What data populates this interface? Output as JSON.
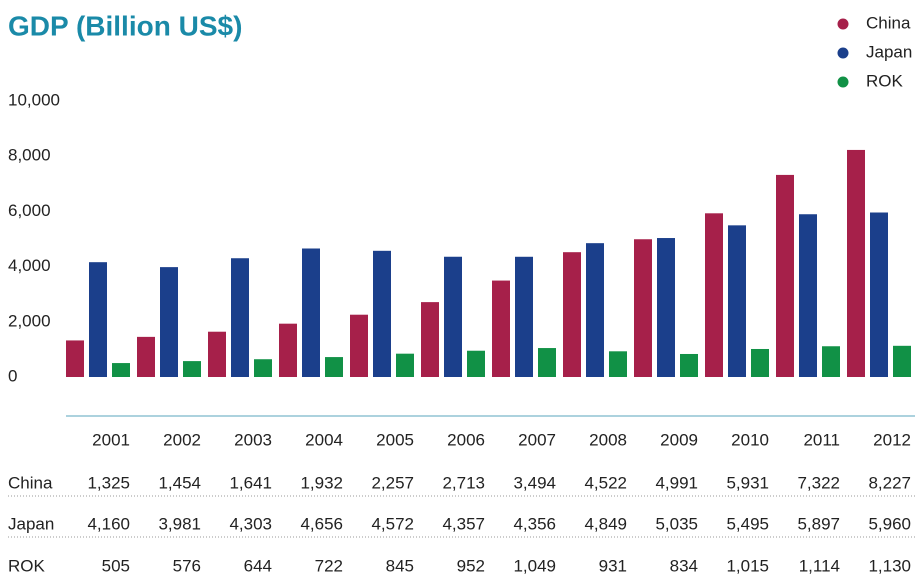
{
  "chart_data": {
    "type": "bar",
    "title": "GDP (Billion US$)",
    "categories": [
      "2001",
      "2002",
      "2003",
      "2004",
      "2005",
      "2006",
      "2007",
      "2008",
      "2009",
      "2010",
      "2011",
      "2012"
    ],
    "series": [
      {
        "name": "China",
        "color": "#a6204a",
        "values": [
          1325,
          1454,
          1641,
          1932,
          2257,
          2713,
          3494,
          4522,
          4991,
          5931,
          7322,
          8227
        ],
        "value_labels": [
          "1,325",
          "1,454",
          "1,641",
          "1,932",
          "2,257",
          "2,713",
          "3,494",
          "4,522",
          "4,991",
          "5,931",
          "7,322",
          "8,227"
        ]
      },
      {
        "name": "Japan",
        "color": "#1b3f8b",
        "values": [
          4160,
          3981,
          4303,
          4656,
          4572,
          4357,
          4356,
          4849,
          5035,
          5495,
          5897,
          5960
        ],
        "value_labels": [
          "4,160",
          "3,981",
          "4,303",
          "4,656",
          "4,572",
          "4,357",
          "4,356",
          "4,849",
          "5,035",
          "5,495",
          "5,897",
          "5,960"
        ]
      },
      {
        "name": "ROK",
        "color": "#119146",
        "values": [
          505,
          576,
          644,
          722,
          845,
          952,
          1049,
          931,
          834,
          1015,
          1114,
          1130
        ],
        "value_labels": [
          "505",
          "576",
          "644",
          "722",
          "845",
          "952",
          "1,049",
          "931",
          "834",
          "1,015",
          "1,114",
          "1,130"
        ]
      }
    ],
    "ylim": [
      0,
      10000
    ],
    "yticks": [
      0,
      {
        "value": 2000,
        "label": "2,000"
      },
      {
        "value": 4000,
        "label": "4,000"
      },
      {
        "value": 6000,
        "label": "6,000"
      },
      {
        "value": 8000,
        "label": "8,000"
      },
      {
        "value": 10000,
        "label": "10,000"
      }
    ],
    "grid": false,
    "legend": "top-right"
  }
}
